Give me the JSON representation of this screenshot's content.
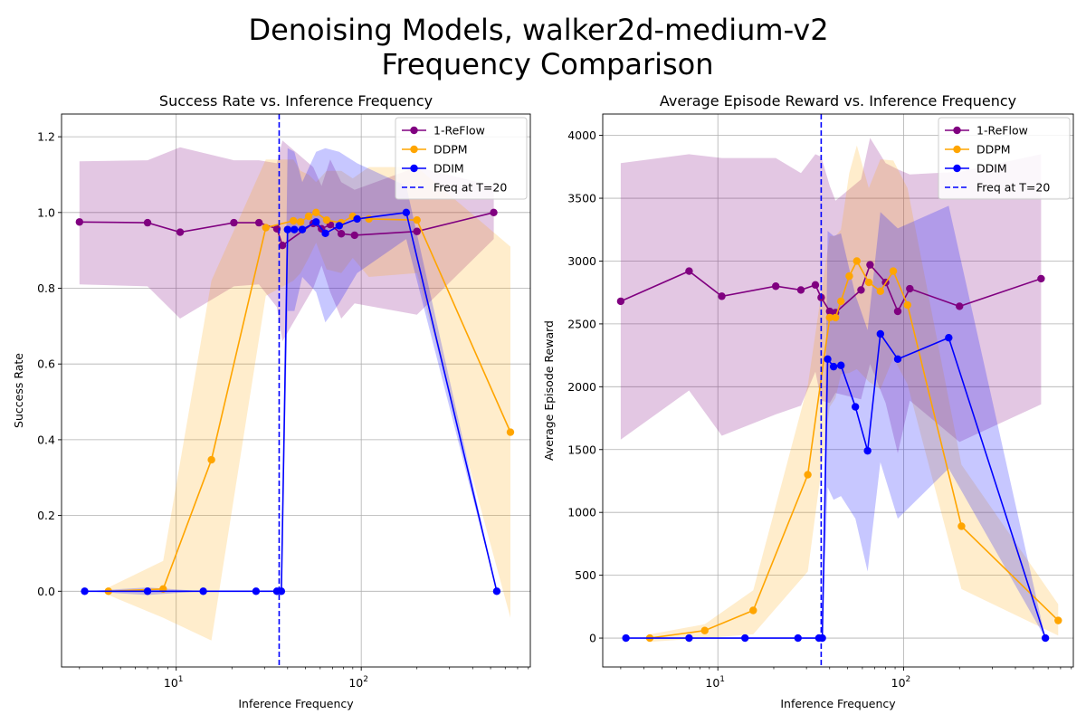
{
  "figure": {
    "title_line1": "Denoising Models, walker2d-medium-v2",
    "title_line2": "Frequency Comparison"
  },
  "colors": {
    "reflow": "#800080",
    "ddpm": "#ffa500",
    "ddim": "#0000ff",
    "grid": "#b0b0b0"
  },
  "chart_data": [
    {
      "type": "line",
      "title": "Success Rate vs. Inference Frequency",
      "xlabel": "Inference Frequency",
      "ylabel": "Success Rate",
      "xscale": "log",
      "xlim": [
        2.4,
        820
      ],
      "ylim": [
        -0.2,
        1.26
      ],
      "xticks": [
        {
          "v": 10,
          "base": "10",
          "exp": "1"
        },
        {
          "v": 100,
          "base": "10",
          "exp": "2"
        }
      ],
      "yticks": [
        {
          "v": 0.0,
          "label": "0.0"
        },
        {
          "v": 0.2,
          "label": "0.2"
        },
        {
          "v": 0.4,
          "label": "0.4"
        },
        {
          "v": 0.6,
          "label": "0.6"
        },
        {
          "v": 0.8,
          "label": "0.8"
        },
        {
          "v": 1.0,
          "label": "1.0"
        },
        {
          "v": 1.2,
          "label": "1.2"
        }
      ],
      "grid": true,
      "legend_position": "top-right",
      "vline": {
        "x": 36,
        "label": "Freq at T=20"
      },
      "series": [
        {
          "name": "1-ReFlow",
          "color": "#800080",
          "x": [
            3,
            7,
            10.5,
            20.5,
            28,
            35,
            37.5,
            55,
            61,
            68,
            78,
            92,
            200,
            520
          ],
          "y": [
            0.975,
            0.973,
            0.948,
            0.973,
            0.973,
            0.957,
            0.913,
            0.971,
            0.957,
            0.968,
            0.944,
            0.94,
            0.95,
            1.0
          ],
          "lower": [
            0.81,
            0.805,
            0.72,
            0.805,
            0.81,
            0.75,
            0.66,
            0.8,
            0.86,
            0.79,
            0.72,
            0.76,
            0.73,
            0.93
          ],
          "upper": [
            1.135,
            1.138,
            1.172,
            1.138,
            1.138,
            1.13,
            1.19,
            1.12,
            1.07,
            1.14,
            1.08,
            1.06,
            1.12,
            1.07
          ]
        },
        {
          "name": "DDPM",
          "color": "#ffa500",
          "x": [
            4.3,
            8.5,
            15.5,
            30.5,
            43,
            47,
            52,
            57,
            65,
            78,
            90,
            110,
            200,
            640
          ],
          "y": [
            0.0,
            0.006,
            0.347,
            0.96,
            0.978,
            0.975,
            0.99,
            1.0,
            0.98,
            0.973,
            0.99,
            0.983,
            0.98,
            0.42
          ],
          "lower": [
            -0.01,
            -0.07,
            -0.13,
            0.78,
            0.82,
            0.84,
            0.88,
            0.92,
            0.85,
            0.84,
            0.88,
            0.83,
            0.84,
            -0.07
          ],
          "upper": [
            0.01,
            0.08,
            0.82,
            1.14,
            1.14,
            1.11,
            1.1,
            1.08,
            1.11,
            1.11,
            1.09,
            1.12,
            1.12,
            0.91
          ]
        },
        {
          "name": "DDIM",
          "color": "#0000ff",
          "x": [
            3.2,
            7,
            14,
            27,
            35,
            37,
            40,
            43.5,
            48,
            57,
            64,
            76,
            95,
            175,
            540
          ],
          "y": [
            0.0,
            0.0,
            0.0,
            0.0,
            0.0,
            0.0,
            0.955,
            0.955,
            0.955,
            0.975,
            0.945,
            0.965,
            0.983,
            1.0,
            0.0
          ],
          "lower": [
            0.0,
            -0.01,
            0.0,
            0.0,
            0.0,
            0.0,
            0.74,
            0.74,
            0.83,
            0.79,
            0.71,
            0.76,
            0.84,
            0.93,
            0.0
          ],
          "upper": [
            0.0,
            0.01,
            0.0,
            0.0,
            0.0,
            0.0,
            1.17,
            1.16,
            1.08,
            1.16,
            1.17,
            1.16,
            1.13,
            1.07,
            0.0
          ]
        }
      ]
    },
    {
      "type": "line",
      "title": "Average Episode Reward vs. Inference Frequency",
      "xlabel": "Inference Frequency",
      "ylabel": "Average Episode Reward",
      "xscale": "log",
      "xlim": [
        2.4,
        820
      ],
      "ylim": [
        -230,
        4170
      ],
      "xticks": [
        {
          "v": 10,
          "base": "10",
          "exp": "1"
        },
        {
          "v": 100,
          "base": "10",
          "exp": "2"
        }
      ],
      "yticks": [
        {
          "v": 0,
          "label": "0"
        },
        {
          "v": 500,
          "label": "500"
        },
        {
          "v": 1000,
          "label": "1000"
        },
        {
          "v": 1500,
          "label": "1500"
        },
        {
          "v": 2000,
          "label": "2000"
        },
        {
          "v": 2500,
          "label": "2500"
        },
        {
          "v": 3000,
          "label": "3000"
        },
        {
          "v": 3500,
          "label": "3500"
        },
        {
          "v": 4000,
          "label": "4000"
        }
      ],
      "grid": true,
      "legend_position": "top-right",
      "vline": {
        "x": 36,
        "label": "Freq at T=20"
      },
      "series": [
        {
          "name": "1-ReFlow",
          "color": "#800080",
          "x": [
            3,
            7,
            10.5,
            20.5,
            28,
            33.5,
            36,
            40,
            43,
            59,
            66,
            80,
            93,
            108,
            200,
            550
          ],
          "y": [
            2680,
            2920,
            2720,
            2800,
            2770,
            2810,
            2710,
            2600,
            2590,
            2770,
            2970,
            2830,
            2600,
            2780,
            2640,
            2860
          ],
          "lower": [
            1580,
            1970,
            1610,
            1780,
            1850,
            2120,
            1890,
            1870,
            1950,
            1900,
            2180,
            1870,
            1470,
            1890,
            1560,
            1860
          ],
          "upper": [
            3780,
            3850,
            3820,
            3820,
            3700,
            3850,
            3830,
            3600,
            3480,
            3650,
            3980,
            3780,
            3730,
            3690,
            3710,
            3850
          ]
        },
        {
          "name": "DDPM",
          "color": "#ffa500",
          "x": [
            4.3,
            8.5,
            15.5,
            30.5,
            40,
            43,
            46,
            51,
            56,
            65,
            75,
            88,
            105,
            205,
            680
          ],
          "y": [
            0,
            60,
            220,
            1300,
            2550,
            2550,
            2680,
            2880,
            3000,
            2830,
            2760,
            2920,
            2650,
            890,
            140
          ],
          "lower": [
            -30,
            0,
            30,
            530,
            1840,
            1910,
            2100,
            2110,
            2140,
            2040,
            1980,
            2230,
            2020,
            390,
            20
          ],
          "upper": [
            30,
            110,
            380,
            2010,
            3200,
            3200,
            3250,
            3700,
            3920,
            3580,
            3810,
            3800,
            3580,
            1380,
            270
          ]
        },
        {
          "name": "DDIM",
          "color": "#0000ff",
          "x": [
            3.2,
            7,
            14,
            27,
            35,
            36.5,
            39,
            42,
            46,
            55,
            64,
            75,
            93,
            175,
            580
          ],
          "y": [
            0,
            0,
            0,
            0,
            0,
            0,
            2220,
            2160,
            2170,
            1840,
            1490,
            2420,
            2220,
            2390,
            0
          ],
          "lower": [
            0,
            0,
            0,
            0,
            0,
            0,
            1200,
            1100,
            1130,
            950,
            530,
            1400,
            950,
            1350,
            0
          ],
          "upper": [
            0,
            0,
            0,
            0,
            0,
            0,
            3240,
            3200,
            3220,
            2730,
            2450,
            3390,
            3260,
            3440,
            0
          ]
        }
      ]
    }
  ]
}
